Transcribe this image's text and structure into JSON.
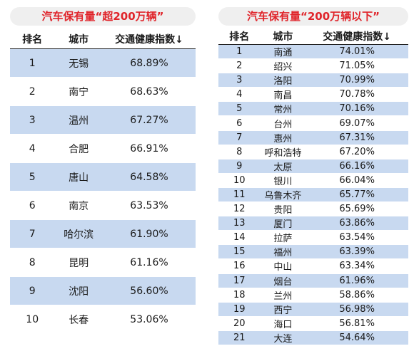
{
  "left": {
    "title": "汽车保有量“超200万辆”",
    "headers": {
      "rank": "排名",
      "city": "城市",
      "index": "交通健康指数↓"
    },
    "rows": [
      {
        "rank": "1",
        "city": "无锡",
        "index": "68.89%"
      },
      {
        "rank": "2",
        "city": "南宁",
        "index": "68.63%"
      },
      {
        "rank": "3",
        "city": "温州",
        "index": "67.27%"
      },
      {
        "rank": "4",
        "city": "合肥",
        "index": "66.91%"
      },
      {
        "rank": "5",
        "city": "唐山",
        "index": "64.58%"
      },
      {
        "rank": "6",
        "city": "南京",
        "index": "63.53%"
      },
      {
        "rank": "7",
        "city": "哈尔滨",
        "index": "61.90%"
      },
      {
        "rank": "8",
        "city": "昆明",
        "index": "61.16%"
      },
      {
        "rank": "9",
        "city": "沈阳",
        "index": "56.60%"
      },
      {
        "rank": "10",
        "city": "长春",
        "index": "53.06%"
      }
    ]
  },
  "right": {
    "title": "汽车保有量“200万辆以下”",
    "headers": {
      "rank": "排名",
      "city": "城市",
      "index": "交通健康指数↓"
    },
    "rows": [
      {
        "rank": "1",
        "city": "南通",
        "index": "74.01%"
      },
      {
        "rank": "2",
        "city": "绍兴",
        "index": "71.05%"
      },
      {
        "rank": "3",
        "city": "洛阳",
        "index": "70.99%"
      },
      {
        "rank": "4",
        "city": "南昌",
        "index": "70.78%"
      },
      {
        "rank": "5",
        "city": "常州",
        "index": "70.16%"
      },
      {
        "rank": "6",
        "city": "台州",
        "index": "69.07%"
      },
      {
        "rank": "7",
        "city": "惠州",
        "index": "67.31%"
      },
      {
        "rank": "8",
        "city": "呼和浩特",
        "index": "67.20%"
      },
      {
        "rank": "9",
        "city": "太原",
        "index": "66.16%"
      },
      {
        "rank": "10",
        "city": "银川",
        "index": "66.04%"
      },
      {
        "rank": "11",
        "city": "乌鲁木齐",
        "index": "65.77%"
      },
      {
        "rank": "12",
        "city": "贵阳",
        "index": "65.69%"
      },
      {
        "rank": "13",
        "city": "厦门",
        "index": "63.86%"
      },
      {
        "rank": "14",
        "city": "拉萨",
        "index": "63.54%"
      },
      {
        "rank": "15",
        "city": "福州",
        "index": "63.39%"
      },
      {
        "rank": "16",
        "city": "中山",
        "index": "63.34%"
      },
      {
        "rank": "17",
        "city": "烟台",
        "index": "61.96%"
      },
      {
        "rank": "18",
        "city": "兰州",
        "index": "58.86%"
      },
      {
        "rank": "19",
        "city": "西宁",
        "index": "56.98%"
      },
      {
        "rank": "20",
        "city": "海口",
        "index": "56.81%"
      },
      {
        "rank": "21",
        "city": "大连",
        "index": "54.64%"
      }
    ]
  },
  "colors": {
    "title_text": "#e0242a",
    "title_bg": "#efefef",
    "stripe": "#c8d9f0",
    "header_rule": "#222222"
  }
}
